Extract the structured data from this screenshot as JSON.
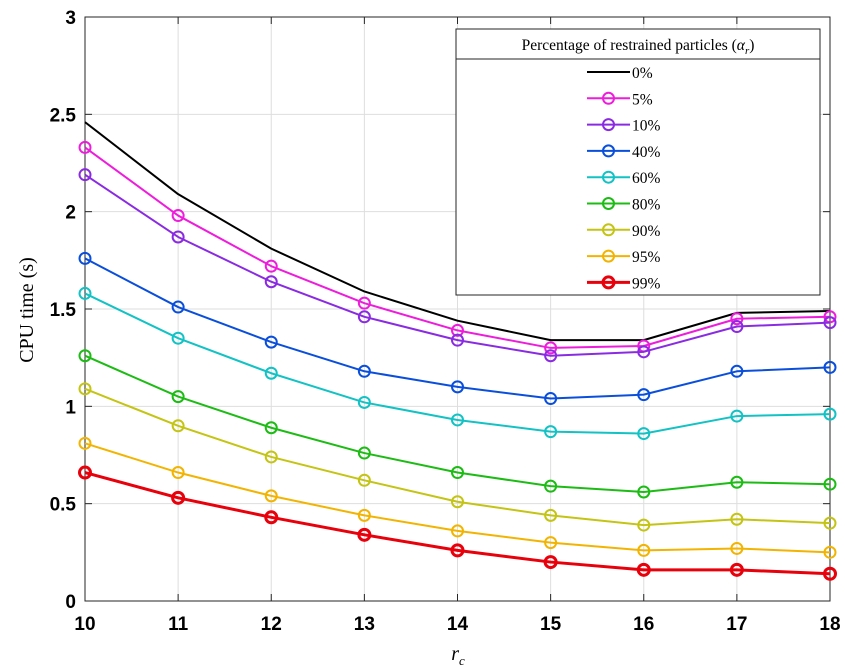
{
  "chart_data": {
    "type": "line",
    "title": "",
    "xlabel": "r",
    "xlabel_subscript": "c",
    "ylabel": "CPU time (s)",
    "xlim": [
      10,
      18
    ],
    "ylim": [
      0,
      3
    ],
    "grid": true,
    "x": [
      10,
      11,
      12,
      13,
      14,
      15,
      16,
      17,
      18
    ],
    "x_tick_labels": [
      "10",
      "11",
      "12",
      "13",
      "14",
      "15",
      "16",
      "17",
      "18"
    ],
    "y_ticks": [
      0,
      0.5,
      1,
      1.5,
      2,
      2.5,
      3
    ],
    "y_tick_labels": [
      "0",
      "0.5",
      "1",
      "1.5",
      "2",
      "2.5",
      "3"
    ],
    "legend": {
      "title": "Percentage of restrained particles",
      "title_symbol": "α",
      "title_symbol_subscript": "r",
      "placement": "top-right"
    },
    "series": [
      {
        "name": "0%",
        "color": "#000000",
        "marker": false,
        "values": [
          2.46,
          2.09,
          1.81,
          1.59,
          1.44,
          1.34,
          1.34,
          1.48,
          1.49
        ]
      },
      {
        "name": "5%",
        "color": "#ee1ddc",
        "marker": true,
        "values": [
          2.33,
          1.98,
          1.72,
          1.53,
          1.39,
          1.3,
          1.31,
          1.45,
          1.46
        ]
      },
      {
        "name": "10%",
        "color": "#8a2be2",
        "marker": true,
        "values": [
          2.19,
          1.87,
          1.64,
          1.46,
          1.34,
          1.26,
          1.28,
          1.41,
          1.43
        ]
      },
      {
        "name": "40%",
        "color": "#0a4fdc",
        "marker": true,
        "values": [
          1.76,
          1.51,
          1.33,
          1.18,
          1.1,
          1.04,
          1.06,
          1.18,
          1.2
        ]
      },
      {
        "name": "60%",
        "color": "#12c2c4",
        "marker": true,
        "values": [
          1.58,
          1.35,
          1.17,
          1.02,
          0.93,
          0.87,
          0.86,
          0.95,
          0.96
        ]
      },
      {
        "name": "80%",
        "color": "#1cbc14",
        "marker": true,
        "values": [
          1.26,
          1.05,
          0.89,
          0.76,
          0.66,
          0.59,
          0.56,
          0.61,
          0.6
        ]
      },
      {
        "name": "90%",
        "color": "#c4c414",
        "marker": true,
        "values": [
          1.09,
          0.9,
          0.74,
          0.62,
          0.51,
          0.44,
          0.39,
          0.42,
          0.4
        ]
      },
      {
        "name": "95%",
        "color": "#f2b400",
        "marker": true,
        "values": [
          0.81,
          0.66,
          0.54,
          0.44,
          0.36,
          0.3,
          0.26,
          0.27,
          0.25
        ]
      },
      {
        "name": "99%",
        "color": "#e8000b",
        "marker": true,
        "values": [
          0.66,
          0.53,
          0.43,
          0.34,
          0.26,
          0.2,
          0.16,
          0.16,
          0.14
        ]
      }
    ]
  }
}
